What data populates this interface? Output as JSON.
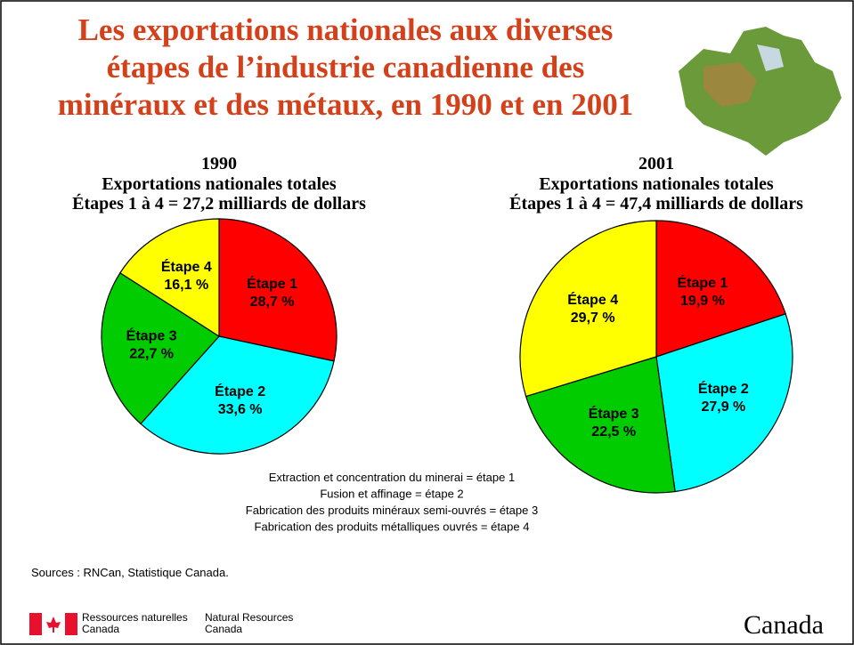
{
  "title": [
    "Les exportations nationales aux diverses",
    "étapes de l’industrie canadienne des",
    "minéraux et des métaux, en 1990 et en 2001"
  ],
  "chart_data": [
    {
      "type": "pie",
      "title": "1990",
      "subtitle": [
        "Exportations nationales totales",
        "Étapes 1 à 4 = 27,2 milliards de dollars"
      ],
      "categories": [
        "Étape 1",
        "Étape 2",
        "Étape 3",
        "Étape 4"
      ],
      "values": [
        28.7,
        33.6,
        22.7,
        16.1
      ],
      "value_labels": [
        "28,7 %",
        "33,6 %",
        "22,7 %",
        "16,1 %"
      ],
      "colors": [
        "#ff0000",
        "#00ffff",
        "#00cc00",
        "#ffff00"
      ]
    },
    {
      "type": "pie",
      "title": "2001",
      "subtitle": [
        "Exportations nationales totales",
        "Étapes 1 à 4 = 47,4 milliards de dollars"
      ],
      "categories": [
        "Étape 1",
        "Étape 2",
        "Étape 3",
        "Étape 4"
      ],
      "values": [
        19.9,
        27.9,
        22.5,
        29.7
      ],
      "value_labels": [
        "19,9 %",
        "27,9 %",
        "22,5 %",
        "29,7 %"
      ],
      "colors": [
        "#ff0000",
        "#00ffff",
        "#00cc00",
        "#ffff00"
      ]
    }
  ],
  "notes": [
    "Extraction et concentration du minerai = étape 1",
    "Fusion et affinage = étape 2",
    "Fabrication des produits minéraux semi-ouvrés = étape 3",
    "Fabrication des produits métalliques ouvrés = étape 4"
  ],
  "sources": "Sources : RNCan, Statistique Canada.",
  "footer": {
    "fr": [
      "Ressources naturelles",
      "Canada"
    ],
    "en": [
      "Natural Resources",
      "Canada"
    ],
    "wordmark": "Canada"
  }
}
